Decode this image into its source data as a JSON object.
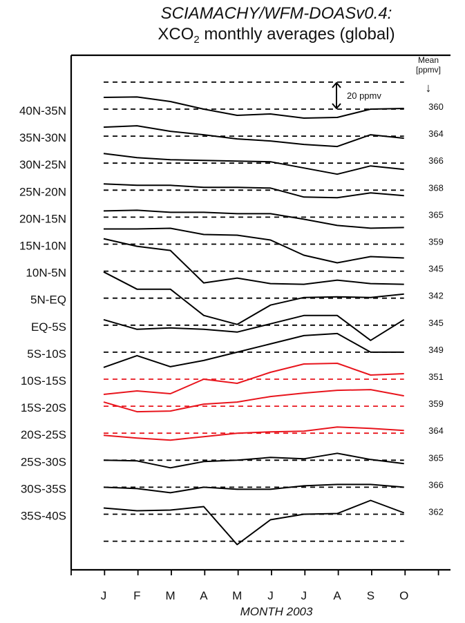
{
  "title_line1": "SCIAMACHY/WFM-DOASv0.4:",
  "title_line2_pre": "XCO",
  "title_line2_sub": "2",
  "title_line2_post": " monthly averages (global)",
  "xlabel": "MONTH 2003",
  "mean_header": [
    "Mean",
    "[ppmv]"
  ],
  "mean_arrow": "↓",
  "scale_label": "20 ppmv",
  "colors": {
    "north": "#000000",
    "south_tropics": "#e8141c"
  },
  "chart_data": {
    "type": "line",
    "title": "SCIAMACHY/WFM-DOASv0.4: XCO2 monthly averages (global)",
    "xlabel": "MONTH 2003",
    "months": [
      "J",
      "F",
      "M",
      "A",
      "M",
      "J",
      "J",
      "A",
      "S",
      "O"
    ],
    "scale_bar_ppmv": 20,
    "series": [
      {
        "name": "40N-35N",
        "mean": "360",
        "color": "#000000",
        "offsets": [
          8.5,
          8.8,
          5.5,
          0,
          -4.5,
          -3.5,
          -6.5,
          -6,
          0,
          0.5
        ]
      },
      {
        "name": "35N-30N",
        "mean": "364",
        "color": "#000000",
        "offsets": [
          6.5,
          7.5,
          3.5,
          1,
          -2,
          -3.5,
          -6,
          -7.5,
          1,
          -1.5
        ]
      },
      {
        "name": "30N-25N",
        "mean": "366",
        "color": "#000000",
        "offsets": [
          7,
          4,
          2.5,
          2,
          1.5,
          1,
          -3.5,
          -8,
          -2,
          -4.5
        ]
      },
      {
        "name": "25N-20N",
        "mean": "368",
        "color": "#000000",
        "offsets": [
          4.5,
          3.5,
          3.5,
          2,
          2,
          1.5,
          -5,
          -5.5,
          -2,
          -4
        ]
      },
      {
        "name": "20N-15N",
        "mean": "365",
        "color": "#000000",
        "offsets": [
          4.5,
          5,
          3.5,
          3.5,
          2.5,
          2.5,
          -1.5,
          -6,
          -8,
          -7.5
        ]
      },
      {
        "name": "15N-10N",
        "mean": "359",
        "color": "#000000",
        "offsets": [
          11,
          11,
          11.5,
          7,
          6.5,
          3,
          -8,
          -13.5,
          -9,
          -10
        ]
      },
      {
        "name": "10N-5N",
        "mean": "345",
        "color": "#000000",
        "offsets": [
          23.5,
          18,
          15,
          -8.5,
          -5,
          -9,
          -9.5,
          -6.5,
          -9,
          -9.5
        ]
      },
      {
        "name": "5N-EQ",
        "mean": "342",
        "color": "#000000",
        "offsets": [
          19,
          6.5,
          6.5,
          -12.5,
          -19,
          -5,
          0.5,
          1,
          0.5,
          3
        ]
      },
      {
        "name": "EQ-5S",
        "mean": "345",
        "color": "#000000",
        "offsets": [
          4,
          -3,
          -2,
          -3,
          -5,
          1,
          7,
          7,
          -11,
          4
        ]
      },
      {
        "name": "5S-10S",
        "mean": "349",
        "color": "#000000",
        "offsets": [
          -11,
          -2.5,
          -10.5,
          -6,
          0,
          6,
          12,
          13.5,
          0,
          0
        ]
      },
      {
        "name": "10S-15S",
        "mean": "351",
        "color": "#e8141c",
        "offsets": [
          -11,
          -8.5,
          -10.5,
          0,
          -3,
          5,
          11,
          11.5,
          3,
          4
        ]
      },
      {
        "name": "15S-20S",
        "mean": "359",
        "color": "#e8141c",
        "offsets": [
          3,
          -4,
          -3.5,
          1.5,
          3,
          7,
          9.5,
          11.5,
          12,
          7.5
        ]
      },
      {
        "name": "20S-25S",
        "mean": "364",
        "color": "#e8141c",
        "offsets": [
          -1.5,
          -3.5,
          -5,
          -2.5,
          0,
          1,
          1.5,
          4.5,
          3.5,
          2
        ]
      },
      {
        "name": "25S-30S",
        "mean": "365",
        "color": "#000000",
        "offsets": [
          0,
          -0.5,
          -5.5,
          -1,
          0,
          2,
          1,
          5,
          0.5,
          -2.5
        ]
      },
      {
        "name": "30S-35S",
        "mean": "366",
        "color": "#000000",
        "offsets": [
          0,
          -1,
          -4,
          0,
          -1.5,
          -1.5,
          1,
          2,
          2,
          0
        ]
      },
      {
        "name": "35S-40S",
        "mean": "362",
        "color": "#000000",
        "offsets": [
          4.5,
          2.5,
          3,
          5.5,
          -22,
          -4,
          0,
          0.5,
          10,
          1
        ]
      }
    ]
  }
}
